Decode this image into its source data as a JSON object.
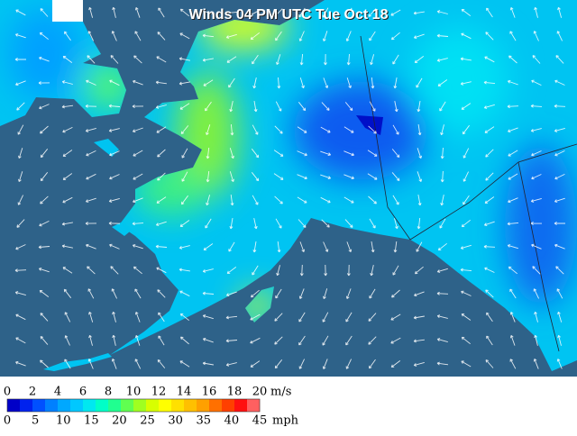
{
  "title": "Winds 04 PM UTC Tue Oct 18",
  "legend": {
    "ms_labels": [
      "0",
      "2",
      "4",
      "6",
      "8",
      "10",
      "12",
      "14",
      "16",
      "18",
      "20"
    ],
    "ms_unit": "m/s",
    "mph_labels": [
      "0",
      "5",
      "10",
      "15",
      "20",
      "25",
      "30",
      "35",
      "40",
      "45"
    ],
    "mph_unit": "mph",
    "colors": [
      "#0000c8",
      "#0022ee",
      "#0050ff",
      "#0080ff",
      "#00a8ff",
      "#00c8ff",
      "#00e8f0",
      "#00ffc8",
      "#20ff90",
      "#60ff50",
      "#a0ff20",
      "#d8ff00",
      "#ffff00",
      "#ffe000",
      "#ffc000",
      "#ffa000",
      "#ff7000",
      "#ff4000",
      "#ff1010",
      "#ff6060"
    ]
  }
}
